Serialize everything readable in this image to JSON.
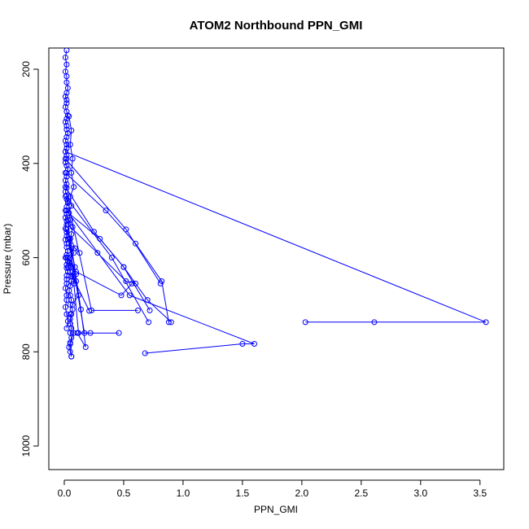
{
  "chart_data": {
    "type": "line",
    "title": "ATOM2 Northbound PPN_GMI",
    "xlabel": "PPN_GMI",
    "ylabel": "Pressure (mbar)",
    "xlim": [
      -0.13,
      3.7
    ],
    "ylim": [
      1050,
      155
    ],
    "y_reversed": true,
    "grid": false,
    "color": "#0000ff",
    "marker": "open-circle",
    "xticks": [
      0.0,
      0.5,
      1.0,
      1.5,
      2.0,
      2.5,
      3.0,
      3.5
    ],
    "xtick_labels": [
      "0.0",
      "0.5",
      "1.0",
      "1.5",
      "2.0",
      "2.5",
      "3.0",
      "3.5"
    ],
    "yticks": [
      200,
      400,
      600,
      800,
      1000
    ],
    "ytick_labels": [
      "200",
      "400",
      "600",
      "800",
      "1000"
    ],
    "series": [
      {
        "x": [
          0.02,
          0.01,
          0.02,
          0.01,
          0.02,
          0.02,
          0.03,
          0.02,
          0.01,
          0.02,
          0.02,
          0.01,
          0.02,
          0.03,
          0.02,
          0.01,
          0.02,
          0.02,
          0.03,
          0.02,
          0.01,
          0.02,
          0.02,
          0.01,
          0.02,
          0.02,
          0.01,
          0.02,
          0.03,
          0.02,
          0.02,
          0.01,
          0.02,
          0.02,
          0.01,
          0.02,
          0.02,
          0.03,
          0.02,
          0.02,
          0.02,
          0.01,
          0.02,
          0.02,
          0.01,
          0.02,
          0.02,
          0.01,
          0.02,
          0.02,
          0.03,
          0.02,
          0.01,
          0.03,
          0.02,
          0.02,
          0.03,
          0.02,
          0.02,
          0.02,
          0.01,
          0.02,
          0.02,
          0.01,
          0.02,
          0.03,
          0.02
        ],
        "y": [
          160,
          175,
          190,
          205,
          215,
          228,
          240,
          250,
          258,
          265,
          272,
          280,
          290,
          298,
          305,
          312,
          320,
          328,
          336,
          344,
          352,
          360,
          368,
          375,
          383,
          390,
          398,
          405,
          412,
          420,
          428,
          436,
          444,
          452,
          460,
          468,
          476,
          484,
          492,
          500,
          508,
          515,
          522,
          530,
          538,
          546,
          554,
          562,
          570,
          578,
          586,
          594,
          600,
          608,
          615,
          622,
          630,
          638,
          646,
          655,
          665,
          680,
          690,
          705,
          720,
          735,
          750
        ]
      },
      {
        "x": [
          0.04,
          0.06,
          0.05,
          0.07,
          0.06,
          0.08,
          0.05,
          0.06,
          0.04,
          0.05,
          0.07,
          0.06,
          0.05,
          0.04,
          0.06,
          0.08,
          0.05,
          0.04,
          0.06,
          0.05,
          0.07,
          0.06,
          0.05,
          0.04,
          0.05,
          0.06,
          0.05,
          0.07,
          0.06,
          0.05,
          0.05,
          0.06,
          0.05,
          0.06,
          0.05,
          0.04,
          0.05,
          0.06
        ],
        "y": [
          300,
          330,
          360,
          390,
          420,
          450,
          470,
          490,
          505,
          520,
          535,
          550,
          560,
          570,
          580,
          590,
          600,
          610,
          620,
          630,
          640,
          650,
          660,
          670,
          680,
          690,
          700,
          710,
          720,
          730,
          740,
          750,
          760,
          770,
          780,
          790,
          800,
          810
        ]
      },
      {
        "x": [
          0.01,
          0.3,
          0.5,
          0.7,
          0.9
        ],
        "y": [
          500,
          560,
          620,
          690,
          737
        ]
      },
      {
        "x": [
          0.01,
          3.55,
          2.61,
          2.03
        ],
        "y": [
          375,
          737,
          737,
          737
        ]
      },
      {
        "x": [
          0.01,
          0.35,
          0.6,
          0.82,
          0.88
        ],
        "y": [
          420,
          500,
          570,
          650,
          737
        ]
      },
      {
        "x": [
          0.01,
          0.25,
          0.5,
          0.72
        ],
        "y": [
          450,
          545,
          620,
          712
        ]
      },
      {
        "x": [
          0.01,
          0.52,
          0.81
        ],
        "y": [
          390,
          540,
          655
        ]
      },
      {
        "x": [
          0.01,
          0.4,
          0.71
        ],
        "y": [
          470,
          600,
          737
        ]
      },
      {
        "x": [
          0.02,
          0.55,
          1.6,
          1.5,
          0.68
        ],
        "y": [
          500,
          680,
          783,
          783,
          803
        ]
      },
      {
        "x": [
          0.05,
          0.14,
          0.18,
          0.11
        ],
        "y": [
          560,
          710,
          790,
          760
        ]
      },
      {
        "x": [
          0.03,
          0.28,
          0.52,
          0.6
        ],
        "y": [
          530,
          590,
          650,
          655
        ]
      },
      {
        "x": [
          0.02,
          0.1,
          0.48,
          0.57
        ],
        "y": [
          600,
          630,
          680,
          655
        ]
      },
      {
        "x": [
          0.03,
          0.23,
          0.62
        ],
        "y": [
          480,
          712,
          712
        ]
      },
      {
        "x": [
          0.03,
          0.12,
          0.46
        ],
        "y": [
          520,
          760,
          760
        ]
      },
      {
        "x": [
          0.02,
          0.17,
          0.22
        ],
        "y": [
          540,
          760,
          760
        ]
      },
      {
        "x": [
          0.04,
          0.09,
          0.06,
          0.1,
          0.12,
          0.07
        ],
        "y": [
          560,
          620,
          640,
          650,
          680,
          700
        ]
      },
      {
        "x": [
          0.05,
          0.08,
          0.05,
          0.06
        ],
        "y": [
          720,
          760,
          783,
          810
        ]
      },
      {
        "x": [
          0.03,
          0.21
        ],
        "y": [
          620,
          713
        ]
      },
      {
        "x": [
          0.02,
          0.09,
          0.13
        ],
        "y": [
          540,
          580,
          590
        ]
      },
      {
        "x": [
          0.03,
          0.1,
          0.08
        ],
        "y": [
          600,
          635,
          655
        ]
      }
    ]
  }
}
